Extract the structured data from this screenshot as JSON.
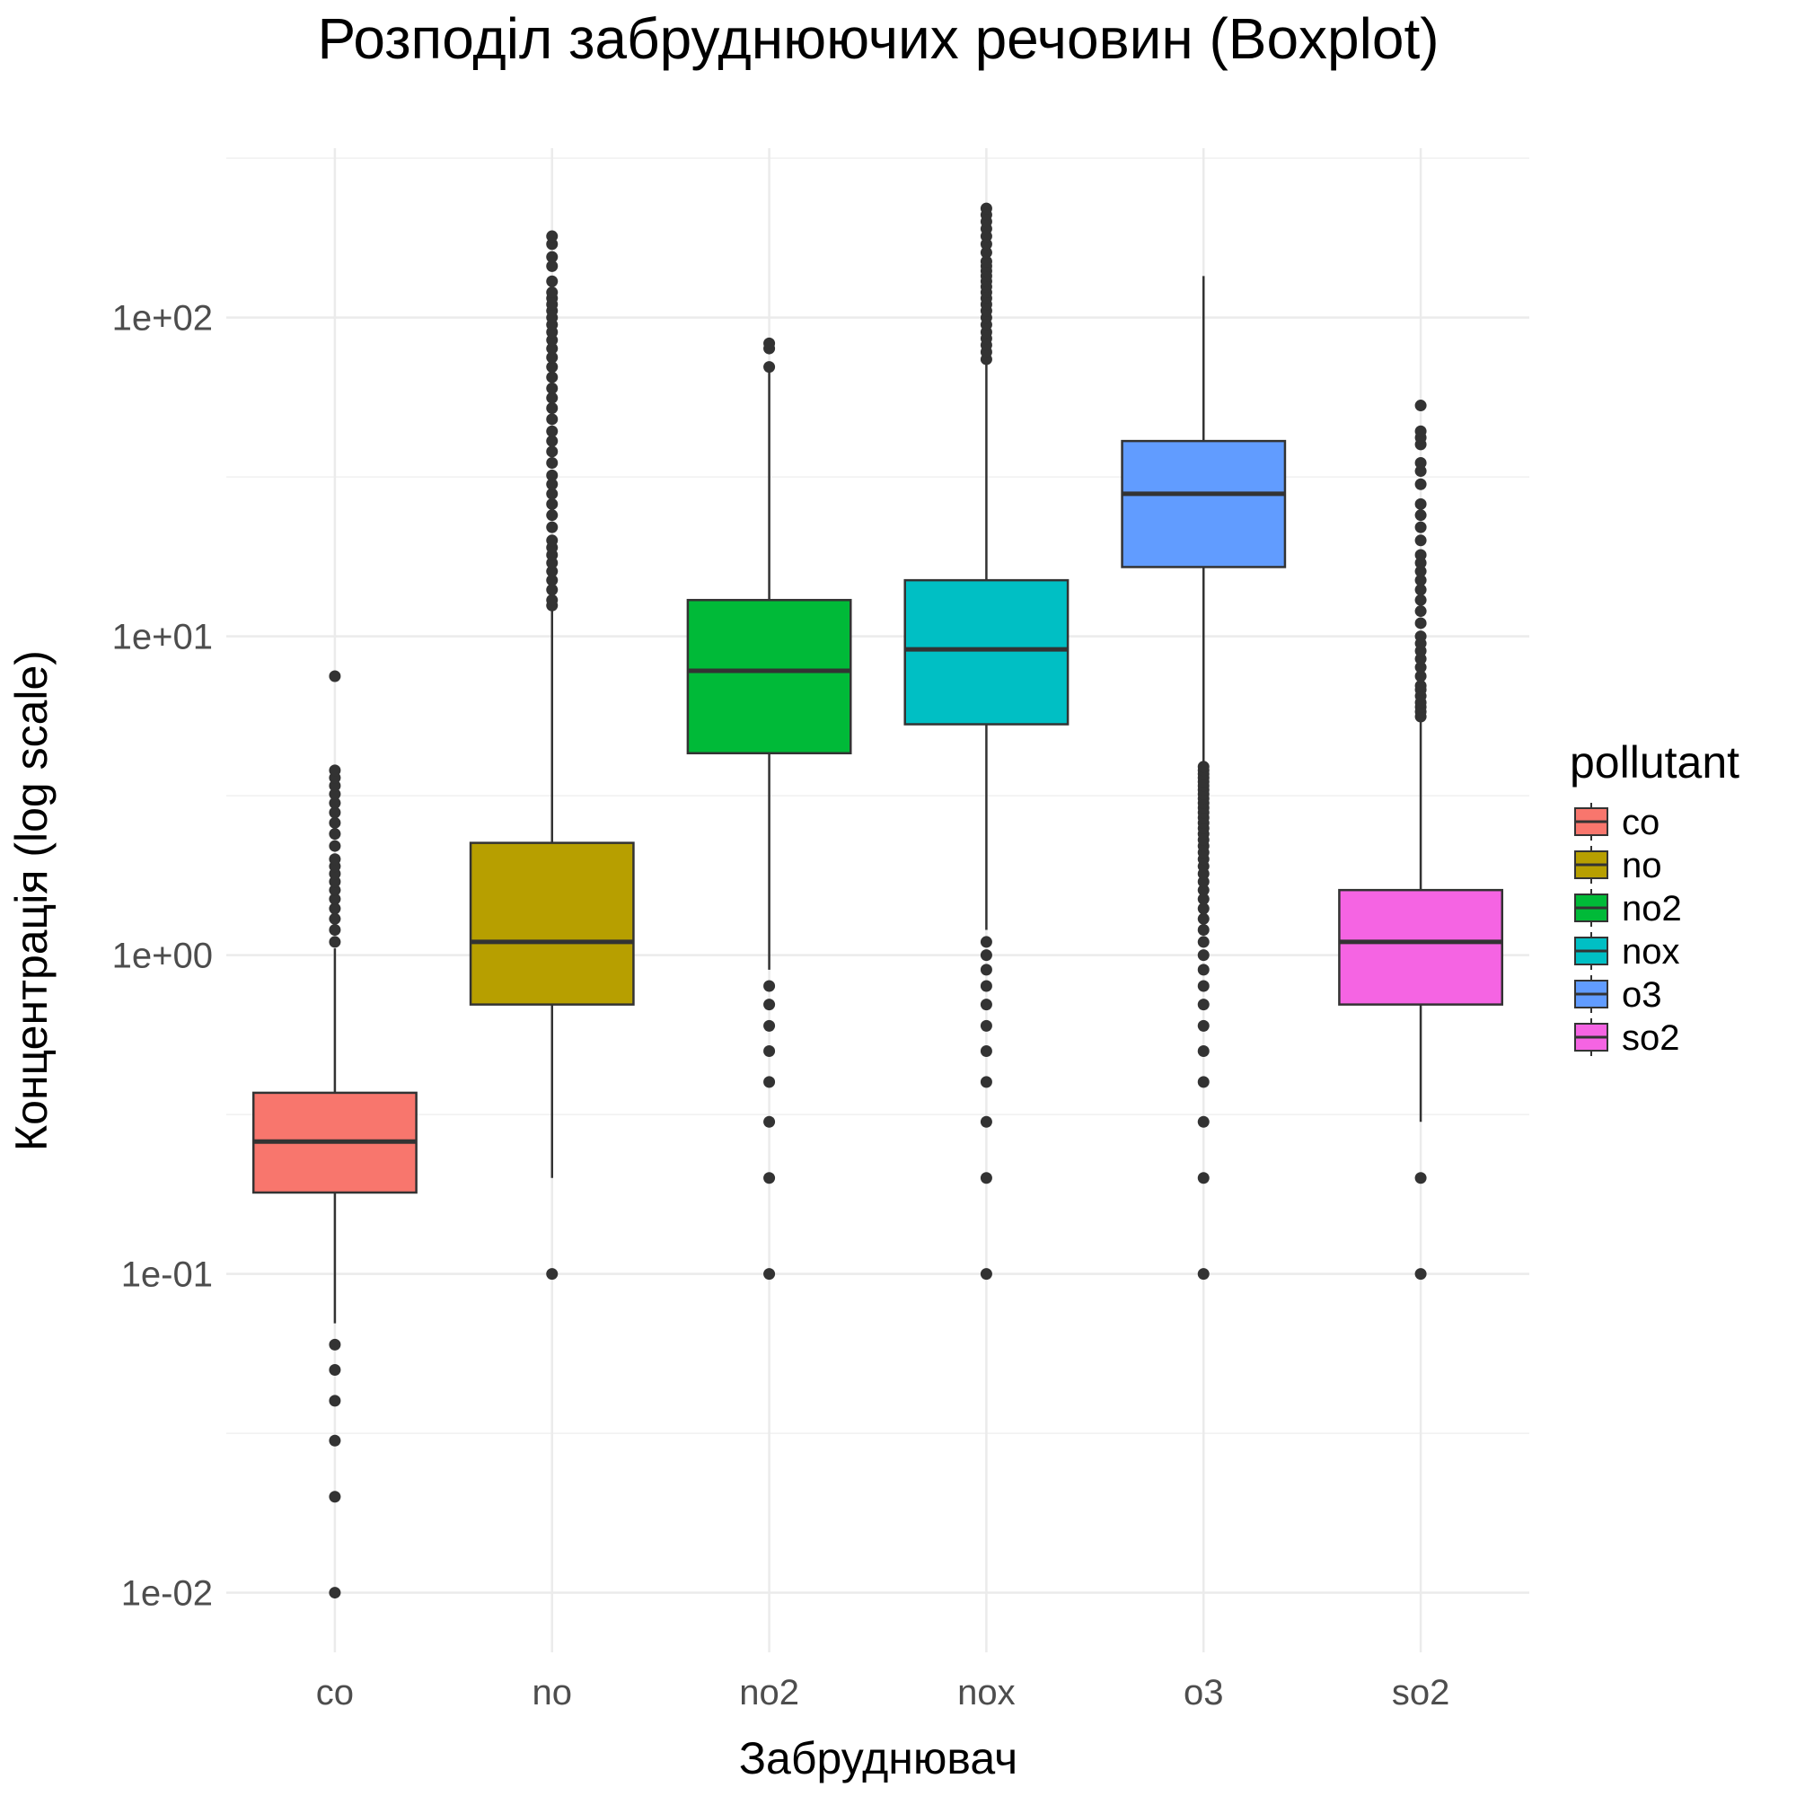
{
  "chart_data": {
    "type": "boxplot",
    "title": "Розподіл забруднюючих речовин (Boxplot)",
    "xlabel": "Забруднювач",
    "ylabel": "Концентрація (log scale)",
    "y_scale": "log10",
    "ylim": [
      0.0065,
      340
    ],
    "y_ticks": [
      0.01,
      0.1,
      1,
      10,
      100
    ],
    "y_tick_labels": [
      "1e-02",
      "1e-01",
      "1e+00",
      "1e+01",
      "1e+02"
    ],
    "grid": true,
    "legend": {
      "title": "pollutant",
      "placement": "right"
    },
    "categories": [
      "co",
      "no",
      "no2",
      "nox",
      "o3",
      "so2"
    ],
    "series": [
      {
        "name": "co",
        "color": "#F8766D",
        "whisker_low": 0.07,
        "q1": 0.18,
        "median": 0.26,
        "q3": 0.37,
        "whisker_high": 1.05,
        "outliers": [
          0.01,
          0.02,
          0.03,
          0.04,
          0.05,
          0.06,
          1.1,
          1.2,
          1.3,
          1.4,
          1.5,
          1.6,
          1.7,
          1.8,
          1.9,
          2.0,
          2.2,
          2.4,
          2.6,
          2.8,
          3.0,
          3.2,
          3.4,
          3.6,
          3.8,
          7.5
        ]
      },
      {
        "name": "no",
        "color": "#B79F00",
        "whisker_low": 0.2,
        "q1": 0.7,
        "median": 1.1,
        "q3": 2.25,
        "whisker_high": 12,
        "outliers": [
          0.1,
          12.5,
          13,
          14,
          15,
          16,
          17,
          18,
          19,
          20,
          22,
          24,
          26,
          28,
          30,
          32,
          35,
          38,
          41,
          44,
          48,
          52,
          56,
          60,
          65,
          70,
          75,
          80,
          85,
          90,
          95,
          100,
          105,
          110,
          115,
          120,
          130,
          145,
          155,
          170,
          180
        ]
      },
      {
        "name": "no2",
        "color": "#00BA38",
        "whisker_low": 0.9,
        "q1": 4.3,
        "median": 7.8,
        "q3": 13,
        "whisker_high": 69,
        "outliers": [
          0.1,
          0.2,
          0.3,
          0.4,
          0.5,
          0.6,
          0.7,
          0.8,
          70,
          80,
          83
        ]
      },
      {
        "name": "nox",
        "color": "#00BFC4",
        "whisker_low": 1.2,
        "q1": 5.3,
        "median": 9.1,
        "q3": 15,
        "whisker_high": 72,
        "outliers": [
          0.1,
          0.2,
          0.3,
          0.4,
          0.5,
          0.6,
          0.7,
          0.8,
          0.9,
          1.0,
          1.1,
          74,
          78,
          82,
          86,
          90,
          95,
          100,
          105,
          110,
          115,
          120,
          125,
          130,
          135,
          140,
          145,
          150,
          160,
          170,
          180,
          190,
          200,
          210,
          220
        ]
      },
      {
        "name": "o3",
        "color": "#619CFF",
        "whisker_low": 4.0,
        "q1": 16.5,
        "median": 28,
        "q3": 41,
        "whisker_high": 135,
        "outliers": [
          0.1,
          0.2,
          0.3,
          0.4,
          0.5,
          0.6,
          0.7,
          0.8,
          0.9,
          1.0,
          1.1,
          1.2,
          1.3,
          1.4,
          1.5,
          1.6,
          1.7,
          1.8,
          1.9,
          2.0,
          2.1,
          2.2,
          2.3,
          2.4,
          2.5,
          2.6,
          2.7,
          2.8,
          2.9,
          3.0,
          3.1,
          3.2,
          3.3,
          3.4,
          3.5,
          3.6,
          3.7,
          3.8,
          3.9
        ]
      },
      {
        "name": "so2",
        "color": "#F564E3",
        "whisker_low": 0.3,
        "q1": 0.7,
        "median": 1.1,
        "q3": 1.6,
        "whisker_high": 5.5,
        "outliers": [
          0.1,
          0.2,
          5.6,
          5.8,
          6.0,
          6.2,
          6.5,
          6.8,
          7.0,
          7.5,
          8.0,
          8.5,
          9.0,
          9.5,
          10,
          11,
          12,
          13,
          14,
          15,
          16,
          17,
          18,
          20,
          22,
          24,
          26,
          30,
          33,
          35,
          40,
          42,
          44,
          53
        ]
      }
    ]
  }
}
